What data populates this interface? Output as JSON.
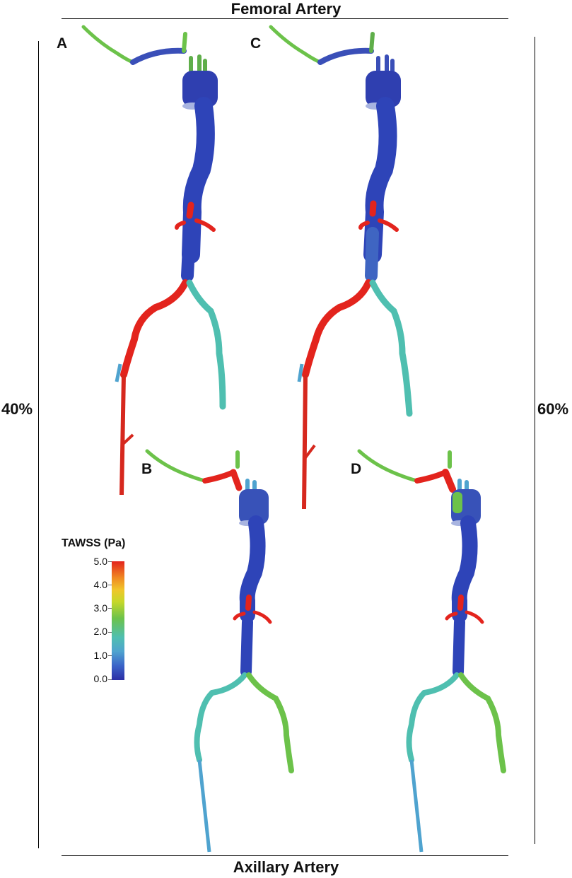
{
  "header": {
    "top_title": "Femoral Artery",
    "bottom_title": "Axillary Artery"
  },
  "sides": {
    "left": "40%",
    "right": "60%"
  },
  "panels": [
    {
      "label": "A"
    },
    {
      "label": "B"
    },
    {
      "label": "C"
    },
    {
      "label": "D"
    }
  ],
  "colorbar": {
    "title": "TAWSS (Pa)",
    "ticks": [
      "5.0",
      "4.0",
      "3.0",
      "2.0",
      "1.0",
      "0.0"
    ],
    "colors": {
      "low": "#2b2ea5",
      "mid": "#6cc24a",
      "high": "#e3241d"
    }
  }
}
